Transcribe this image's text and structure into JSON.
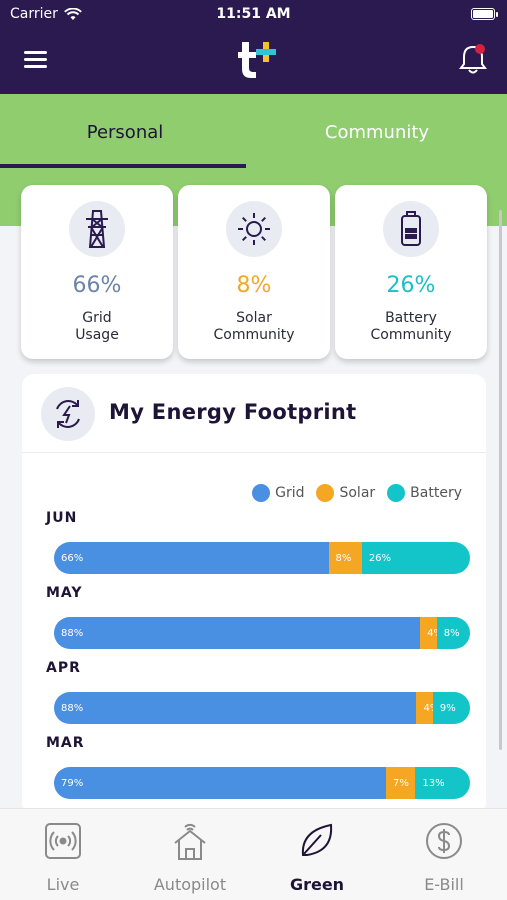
{
  "status_bar": {
    "carrier": "Carrier",
    "time": "11:51 AM"
  },
  "header": {
    "logo_text": "t+",
    "logo_colors": {
      "t": "#ffffff",
      "plus_primary": "#f2c230",
      "plus_secondary": "#2fc4d9"
    }
  },
  "tabs": [
    {
      "label": "Personal",
      "active": true
    },
    {
      "label": "Community",
      "active": false
    }
  ],
  "cards": [
    {
      "icon": "transmission-tower-icon",
      "value": "66%",
      "label_line1": "Grid",
      "label_line2": "Usage",
      "color": "#6c84a8"
    },
    {
      "icon": "sun-icon",
      "value": "8%",
      "label_line1": "Solar",
      "label_line2": "Community",
      "color": "#f0a82c"
    },
    {
      "icon": "battery-icon",
      "value": "26%",
      "label_line1": "Battery",
      "label_line2": "Community",
      "color": "#1cbfc9"
    }
  ],
  "footprint": {
    "title": "My Energy Footprint",
    "legend": [
      {
        "name": "Grid",
        "color": "#4a90e2"
      },
      {
        "name": "Solar",
        "color": "#f5a623"
      },
      {
        "name": "Battery",
        "color": "#13c4c9"
      }
    ],
    "months": [
      {
        "name": "JUN",
        "grid": 66,
        "solar": 8,
        "battery": 26,
        "grid_label": "66%",
        "solar_label": "8%",
        "battery_label": "26%"
      },
      {
        "name": "MAY",
        "grid": 88,
        "solar": 4,
        "battery": 8,
        "grid_label": "88%",
        "solar_label": "4%",
        "battery_label": "8%"
      },
      {
        "name": "APR",
        "grid": 88,
        "solar": 4,
        "battery": 9,
        "grid_label": "88%",
        "solar_label": "4%",
        "battery_label": "9%"
      },
      {
        "name": "MAR",
        "grid": 79,
        "solar": 7,
        "battery": 13,
        "grid_label": "79%",
        "solar_label": "7%",
        "battery_label": "13%"
      }
    ]
  },
  "nav": [
    {
      "icon": "live-signal-icon",
      "label": "Live",
      "active": false
    },
    {
      "icon": "autopilot-house-icon",
      "label": "Autopilot",
      "active": false
    },
    {
      "icon": "leaf-icon",
      "label": "Green",
      "active": true
    },
    {
      "icon": "dollar-icon",
      "label": "E-Bill",
      "active": false
    }
  ]
}
